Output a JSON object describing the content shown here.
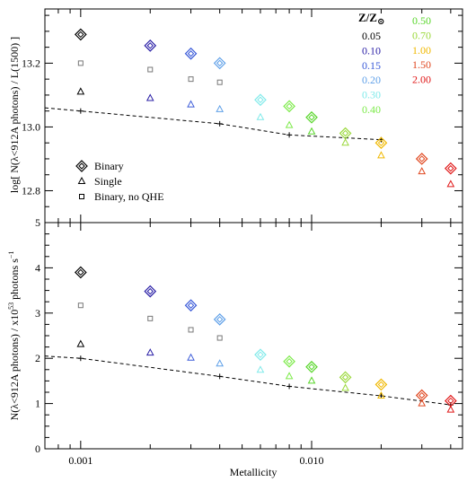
{
  "colors": {
    "0.05": "#000000",
    "0.10": "#2a1fa6",
    "0.15": "#3a5ad8",
    "0.20": "#5fa0e8",
    "0.30": "#80eaea",
    "0.40": "#7dea4a",
    "0.50": "#58d62a",
    "0.70": "#9ad83a",
    "1.00": "#f0b800",
    "1.50": "#e04820",
    "2.00": "#e01818"
  },
  "legend_markers": [
    {
      "symbol": "diamond",
      "label": "Binary"
    },
    {
      "symbol": "triangle",
      "label": "Single"
    },
    {
      "symbol": "square",
      "label": "Binary, no QHE"
    }
  ],
  "legend_z": {
    "header": "Z/Z⊙",
    "items": [
      {
        "label": "0.05",
        "key": "0.05"
      },
      {
        "label": "0.10",
        "key": "0.10"
      },
      {
        "label": "0.15",
        "key": "0.15"
      },
      {
        "label": "0.20",
        "key": "0.20"
      },
      {
        "label": "0.30",
        "key": "0.30"
      },
      {
        "label": "0.40",
        "key": "0.40"
      },
      {
        "label": "0.50",
        "key": "0.50"
      },
      {
        "label": "0.70",
        "key": "0.70"
      },
      {
        "label": "1.00",
        "key": "1.00"
      },
      {
        "label": "1.50",
        "key": "1.50"
      },
      {
        "label": "2.00",
        "key": "2.00"
      }
    ]
  },
  "chart_data": [
    {
      "type": "scatter",
      "xscale": "log",
      "xlim": [
        0.0007,
        0.045
      ],
      "ylim": [
        12.7,
        13.37
      ],
      "xlabel": "",
      "ylabel": "log[ N(λ<912A photons) / L(1500) ]",
      "yticks": [
        "12.8",
        "13.0",
        "13.2"
      ],
      "x": [
        0.001,
        0.002,
        0.003,
        0.004,
        0.006,
        0.008,
        0.01,
        0.014,
        0.02,
        0.03,
        0.04
      ],
      "colors": [
        "0.05",
        "0.10",
        "0.15",
        "0.20",
        "0.30",
        "0.40",
        "0.50",
        "0.70",
        "1.00",
        "1.50",
        "2.00"
      ],
      "series": [
        {
          "symbol": "diamond",
          "values": [
            13.29,
            13.255,
            13.23,
            13.2,
            13.085,
            13.065,
            13.03,
            12.98,
            12.95,
            12.9,
            12.87
          ]
        },
        {
          "symbol": "triangle",
          "values": [
            13.11,
            13.09,
            13.07,
            13.055,
            13.03,
            13.005,
            12.985,
            12.95,
            12.91,
            12.86,
            12.82
          ]
        },
        {
          "symbol": "square",
          "values": [
            13.2,
            13.18,
            13.15,
            13.14,
            null,
            null,
            null,
            null,
            null,
            null,
            null
          ]
        }
      ],
      "fit_line": {
        "x": [
          0.0007,
          0.001,
          0.004,
          0.008,
          0.02
        ],
        "y": [
          13.06,
          13.05,
          13.01,
          12.975,
          12.96
        ]
      },
      "cross_markers": {
        "x": [
          0.001,
          0.004,
          0.008,
          0.02
        ],
        "y": [
          13.05,
          13.01,
          12.975,
          12.96
        ]
      }
    },
    {
      "type": "scatter",
      "xscale": "log",
      "xlim": [
        0.0007,
        0.045
      ],
      "ylim": [
        0,
        5
      ],
      "xlabel": "Metallicity",
      "ylabel": "N(λ<912A photons) / x10⁵³ photons s⁻¹",
      "yticks": [
        "0",
        "1",
        "2",
        "3",
        "4",
        "5"
      ],
      "xticks": [
        {
          "value": 0.001,
          "label": "0.001"
        },
        {
          "value": 0.01,
          "label": "0.010"
        }
      ],
      "x": [
        0.001,
        0.002,
        0.003,
        0.004,
        0.006,
        0.008,
        0.01,
        0.014,
        0.02,
        0.03,
        0.04
      ],
      "colors": [
        "0.05",
        "0.10",
        "0.15",
        "0.20",
        "0.30",
        "0.40",
        "0.50",
        "0.70",
        "1.00",
        "1.50",
        "2.00"
      ],
      "series": [
        {
          "symbol": "diamond",
          "values": [
            3.9,
            3.48,
            3.17,
            2.86,
            2.08,
            1.93,
            1.81,
            1.58,
            1.42,
            1.18,
            1.06
          ]
        },
        {
          "symbol": "triangle",
          "values": [
            2.31,
            2.12,
            2.01,
            1.88,
            1.74,
            1.6,
            1.5,
            1.34,
            1.17,
            1.0,
            0.86
          ]
        },
        {
          "symbol": "square",
          "values": [
            3.17,
            2.88,
            2.63,
            2.45,
            null,
            null,
            null,
            null,
            null,
            null,
            null
          ]
        }
      ],
      "fit_line": {
        "x": [
          0.0007,
          0.001,
          0.004,
          0.008,
          0.02,
          0.04
        ],
        "y": [
          2.05,
          2.0,
          1.6,
          1.38,
          1.17,
          0.97
        ]
      },
      "cross_markers": {
        "x": [
          0.001,
          0.004,
          0.008,
          0.02,
          0.04
        ],
        "y": [
          2.0,
          1.6,
          1.38,
          1.17,
          0.97
        ]
      }
    }
  ]
}
